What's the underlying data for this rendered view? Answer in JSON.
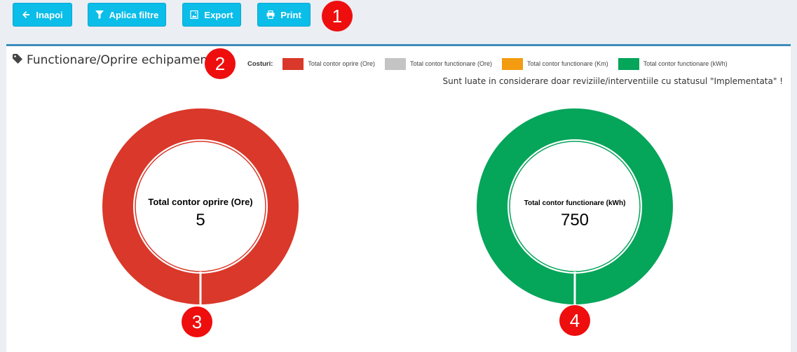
{
  "toolbar": {
    "back_label": "Inapoi",
    "filter_label": "Aplica filtre",
    "export_label": "Export",
    "print_label": "Print"
  },
  "badges": [
    "1",
    "2",
    "3",
    "4"
  ],
  "panel": {
    "title": "Functionare/Oprire echipamente",
    "note": "Sunt luate in considerare doar reviziile/interventiile cu statusul \"Implementata\" !"
  },
  "legend": {
    "label": "Costuri:",
    "items": [
      {
        "label": "Total contor oprire (Ore)",
        "color": "#d9382a"
      },
      {
        "label": "Total contor functionare (Ore)",
        "color": "#c4c4c4"
      },
      {
        "label": "Total contor functionare (Km)",
        "color": "#f39c12"
      },
      {
        "label": "Total contor functionare (kWh)",
        "color": "#05a55a"
      }
    ]
  },
  "chart_data": [
    {
      "type": "pie",
      "title": "Total contor oprire (Ore)",
      "value": "5",
      "color": "#d9382a"
    },
    {
      "type": "pie",
      "title": "Total contor functionare (kWh)",
      "value": "750",
      "color": "#05a55a"
    }
  ]
}
